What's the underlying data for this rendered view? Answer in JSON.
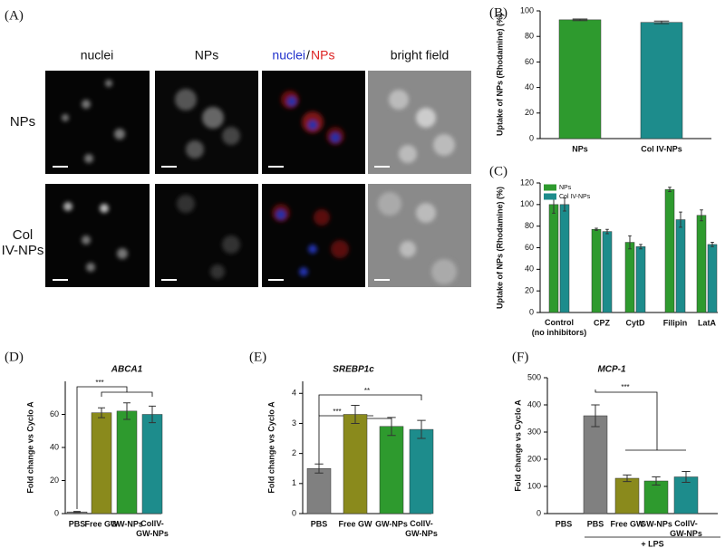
{
  "image_panel": {
    "panel_label": "(A)",
    "columns": [
      "nuclei",
      "NPs",
      "nuclei",
      "/",
      "NPs",
      "bright field"
    ],
    "rows": [
      "NPs",
      "Col IV-NPs"
    ]
  },
  "chart_data": [
    {
      "type": "bar",
      "panel_label": "(B)",
      "ylabel": "Uptake of NPs (Rhodamine) (%)",
      "categories": [
        "NPs",
        "Col IV-NPs"
      ],
      "values": [
        93,
        91
      ],
      "errors": [
        0.6,
        1
      ],
      "colors": [
        "#2e9a2e",
        "#1d8c8c"
      ],
      "ylim": [
        0,
        100
      ],
      "yticks": [
        0,
        20,
        40,
        60,
        80,
        100
      ]
    },
    {
      "type": "bar",
      "panel_label": "(C)",
      "ylabel": "Uptake of NPs (Rhodamine) (%)",
      "categories": [
        "Control (no inhibitors)",
        "CPZ",
        "CytD",
        "Filipin",
        "LatA"
      ],
      "series": [
        {
          "name": "NPs",
          "color": "#2e9a2e",
          "values": [
            100,
            77,
            65,
            114,
            90
          ],
          "errors": [
            8,
            1,
            6,
            2,
            5
          ]
        },
        {
          "name": "Col IV-NPs",
          "color": "#1d8c8c",
          "values": [
            100,
            75,
            61,
            86,
            63
          ],
          "errors": [
            6,
            2,
            2,
            7,
            2
          ]
        }
      ],
      "legend": "top-left",
      "ylim": [
        0,
        120
      ],
      "yticks": [
        0,
        20,
        40,
        60,
        80,
        100,
        120
      ]
    },
    {
      "type": "bar",
      "panel_label": "(D)",
      "title": "ABCA1",
      "ylabel": "Fold change vs Cyclo A",
      "categories": [
        "PBS",
        "Free GW",
        "GW-NPs",
        "CollV-GW-NPs"
      ],
      "values": [
        1,
        61,
        62,
        60
      ],
      "errors": [
        0.3,
        3,
        5,
        5
      ],
      "colors": [
        "#808080",
        "#8a8a1c",
        "#2e9a2e",
        "#1d8c8c"
      ],
      "annotations": [
        "***"
      ],
      "ylim": [
        0,
        80
      ],
      "yticks": [
        0,
        20,
        40,
        60
      ]
    },
    {
      "type": "bar",
      "panel_label": "(E)",
      "title": "SREBP1c",
      "ylabel": "Fold change vs Cyclo A",
      "categories": [
        "PBS",
        "Free GW",
        "GW-NPs",
        "CollV-GW-NPs"
      ],
      "values": [
        1.5,
        3.3,
        2.9,
        2.8
      ],
      "errors": [
        0.15,
        0.3,
        0.3,
        0.3
      ],
      "colors": [
        "#808080",
        "#8a8a1c",
        "#2e9a2e",
        "#1d8c8c"
      ],
      "annotations": [
        "***",
        "**"
      ],
      "ylim": [
        0,
        4.4
      ],
      "yticks": [
        0,
        1,
        2,
        3,
        4
      ]
    },
    {
      "type": "bar",
      "panel_label": "(F)",
      "title": "MCP-1",
      "ylabel": "Fold change vs Cyclo A",
      "categories": [
        "PBS",
        "PBS",
        "Free GW",
        "GW-NPs",
        "CollV-GW-NPs"
      ],
      "values": [
        null,
        360,
        130,
        120,
        135
      ],
      "errors": [
        null,
        40,
        12,
        15,
        20
      ],
      "colors": [
        "#808080",
        "#808080",
        "#8a8a1c",
        "#2e9a2e",
        "#1d8c8c"
      ],
      "annotations": [
        "***"
      ],
      "group_label": "+ LPS",
      "ylim": [
        0,
        500
      ],
      "yticks": [
        0,
        100,
        200,
        300,
        400,
        500
      ]
    }
  ]
}
